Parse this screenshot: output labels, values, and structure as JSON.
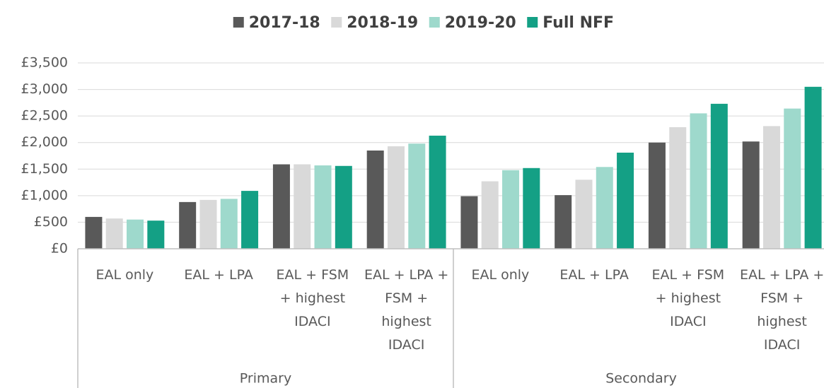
{
  "chart_data": {
    "type": "bar",
    "categories": [
      "EAL only",
      "EAL + LPA",
      "EAL + FSM + highest IDACI",
      "EAL + LPA + FSM + highest IDACI",
      "EAL only",
      "EAL + LPA",
      "EAL + FSM + highest IDACI",
      "EAL + LPA + FSM + highest IDACI"
    ],
    "groups": [
      "Primary",
      "Secondary"
    ],
    "series": [
      {
        "name": "2017-18",
        "color": "#595959",
        "values": [
          600,
          880,
          1590,
          1850,
          990,
          1010,
          2000,
          2020
        ]
      },
      {
        "name": "2018-19",
        "color": "#d9d9d9",
        "values": [
          570,
          920,
          1590,
          1930,
          1270,
          1300,
          2290,
          2310
        ]
      },
      {
        "name": "2019-20",
        "color": "#9ed9cc",
        "values": [
          550,
          940,
          1570,
          1980,
          1480,
          1540,
          2550,
          2640
        ]
      },
      {
        "name": "Full NFF",
        "color": "#14a085",
        "values": [
          530,
          1090,
          1560,
          2130,
          1520,
          1810,
          2730,
          3050
        ]
      }
    ],
    "ylim": [
      0,
      3500
    ],
    "yticks": [
      {
        "value": 0,
        "label": "£0"
      },
      {
        "value": 500,
        "label": "£500"
      },
      {
        "value": 1000,
        "label": "£1,000"
      },
      {
        "value": 1500,
        "label": "£1,500"
      },
      {
        "value": 2000,
        "label": "£2,000"
      },
      {
        "value": 2500,
        "label": "£2,500"
      },
      {
        "value": 3000,
        "label": "£3,000"
      },
      {
        "value": 3500,
        "label": "£3,500"
      }
    ],
    "grid": true,
    "legend": "top"
  }
}
